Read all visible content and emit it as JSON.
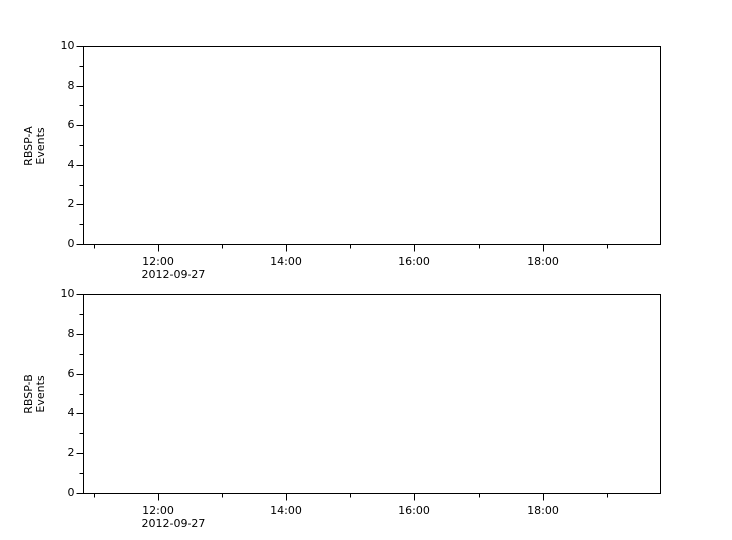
{
  "figure": {
    "background": "#ffffff",
    "axis_color": "#000000",
    "text_color": "#000000"
  },
  "chart_data": [
    {
      "type": "line",
      "panel": "RBSP-A",
      "title": "",
      "ylabel_lines": [
        "RBSP-A",
        "Events"
      ],
      "ylim": [
        0,
        10
      ],
      "y_major_ticks": [
        0,
        2,
        4,
        6,
        8,
        10
      ],
      "y_minor_ticks": [
        1,
        3,
        5,
        7,
        9
      ],
      "x_axis": {
        "date_label": "2012-09-27",
        "lim_hours": [
          10.83,
          19.83
        ],
        "major_ticks": [
          {
            "hour": 12,
            "label": "12:00"
          },
          {
            "hour": 14,
            "label": "14:00"
          },
          {
            "hour": 16,
            "label": "16:00"
          },
          {
            "hour": 18,
            "label": "18:00"
          }
        ],
        "minor_tick_hours": [
          11,
          13,
          15,
          17,
          19
        ]
      },
      "grid": false,
      "series": []
    },
    {
      "type": "line",
      "panel": "RBSP-B",
      "title": "",
      "ylabel_lines": [
        "RBSP-B",
        "Events"
      ],
      "ylim": [
        0,
        10
      ],
      "y_major_ticks": [
        0,
        2,
        4,
        6,
        8,
        10
      ],
      "y_minor_ticks": [
        1,
        3,
        5,
        7,
        9
      ],
      "x_axis": {
        "date_label": "2012-09-27",
        "lim_hours": [
          10.83,
          19.83
        ],
        "major_ticks": [
          {
            "hour": 12,
            "label": "12:00"
          },
          {
            "hour": 14,
            "label": "14:00"
          },
          {
            "hour": 16,
            "label": "16:00"
          },
          {
            "hour": 18,
            "label": "18:00"
          }
        ],
        "minor_tick_hours": [
          11,
          13,
          15,
          17,
          19
        ]
      },
      "grid": false,
      "series": []
    }
  ]
}
